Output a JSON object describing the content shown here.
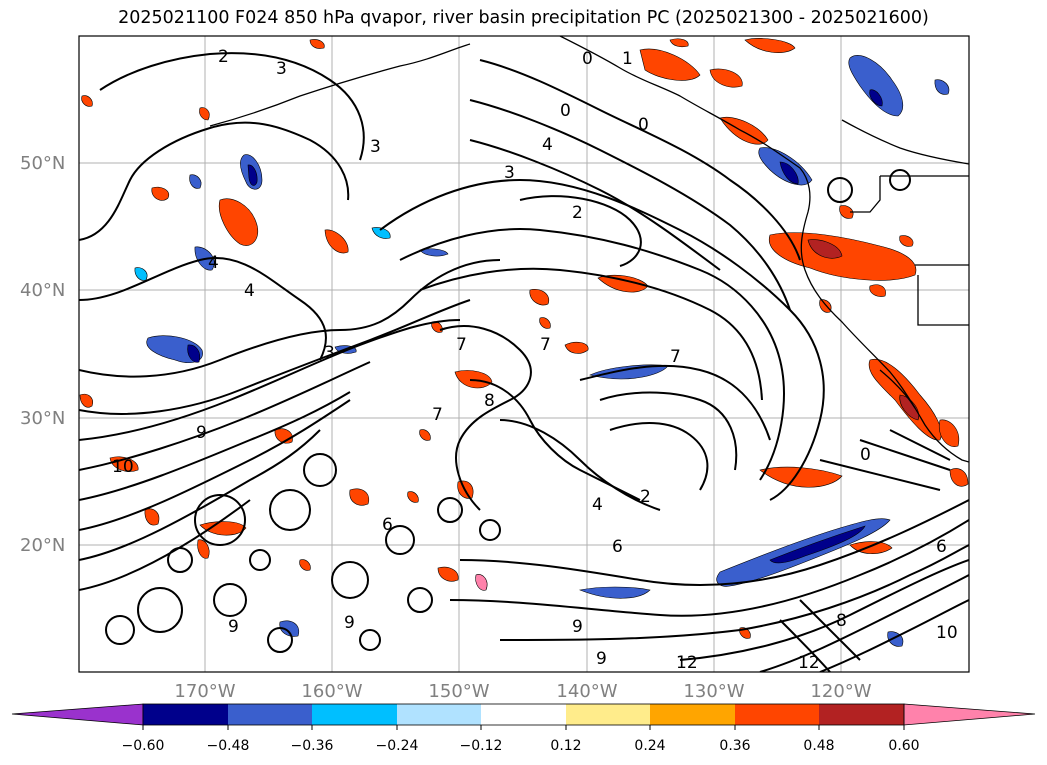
{
  "title": "2025021100 F024 850 hPa qvapor, river basin precipitation PC (2025021300 - 2025021600)",
  "map": {
    "lat_labels": [
      "50°N",
      "40°N",
      "30°N",
      "20°N"
    ],
    "lon_labels": [
      "170°W",
      "160°W",
      "150°W",
      "140°W",
      "130°W",
      "120°W"
    ],
    "contour_labels": [
      "2",
      "3",
      "3",
      "0",
      "1",
      "0",
      "4",
      "0",
      "3",
      "2",
      "4",
      "4",
      "3",
      "7",
      "7",
      "7",
      "7",
      "8",
      "9",
      "10",
      "6",
      "9",
      "9",
      "10",
      "12",
      "12",
      "9",
      "9",
      "6",
      "6",
      "8",
      "0",
      "4",
      "2"
    ]
  },
  "colorbar": {
    "ticks": [
      "−0.60",
      "−0.48",
      "−0.36",
      "−0.24",
      "−0.12",
      "0.12",
      "0.24",
      "0.36",
      "0.48",
      "0.60"
    ],
    "colors": [
      "#9a32cd",
      "#00008b",
      "#3a5fcd",
      "#00bfff",
      "#b0e2ff",
      "#ffffff",
      "#ffec8b",
      "#ffa500",
      "#ff4500",
      "#b22222",
      "#ff82ab"
    ]
  }
}
